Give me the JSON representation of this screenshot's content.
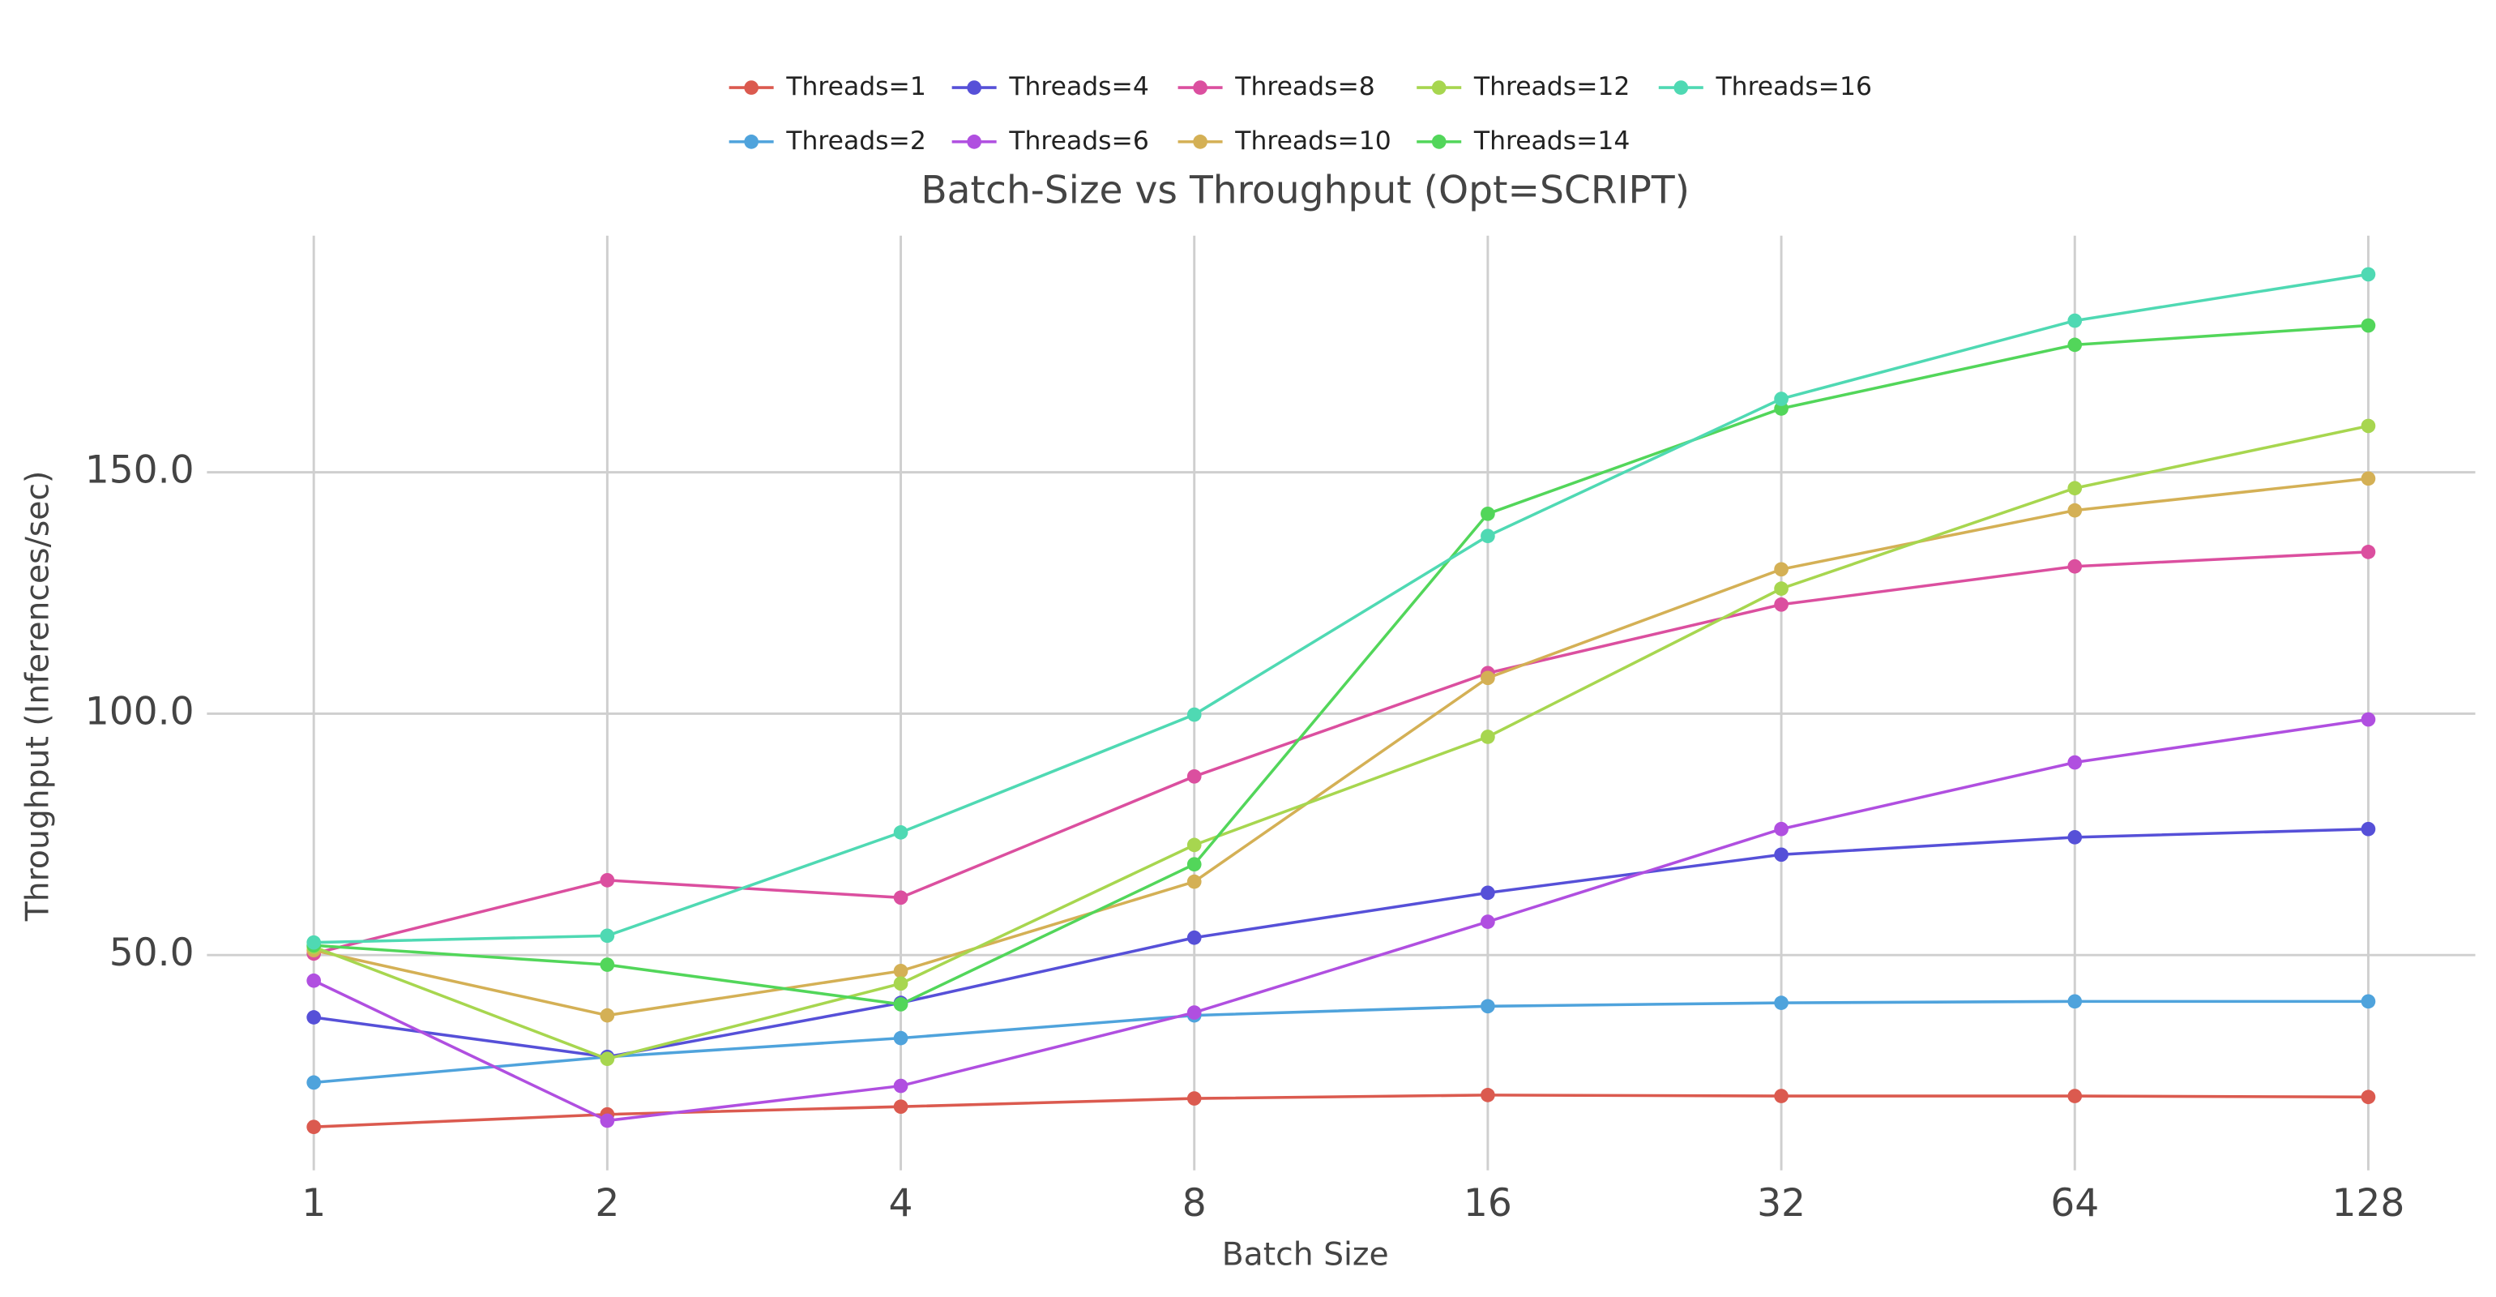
{
  "chart_data": {
    "type": "line",
    "title": "Batch-Size vs Throughput (Opt=SCRIPT)",
    "x_label": "Batch Size",
    "y_label": "Throughput (Inferences/sec)",
    "x": [
      1,
      2,
      4,
      8,
      16,
      32,
      64,
      128
    ],
    "xscale": "log2",
    "xlim": [
      0.777,
      164.8
    ],
    "xticks": [
      1,
      2,
      4,
      8,
      16,
      32,
      64,
      128
    ],
    "ylim": [
      5.4,
      199
    ],
    "yticks": [
      {
        "value": 50,
        "label": "50.0"
      },
      {
        "value": 100,
        "label": "100.0"
      },
      {
        "value": 150,
        "label": "150.0"
      }
    ],
    "grid": true,
    "legend": "top",
    "legend_columns": 5,
    "series": [
      {
        "name": "Threads=1",
        "color": "#db5a4f",
        "values": [
          14.4,
          17.0,
          18.6,
          20.3,
          21.0,
          20.8,
          20.8,
          20.6
        ]
      },
      {
        "name": "Threads=2",
        "color": "#4fa3dc",
        "values": [
          23.6,
          28.9,
          32.8,
          37.5,
          39.4,
          40.1,
          40.4,
          40.4
        ]
      },
      {
        "name": "Threads=4",
        "color": "#5650d8",
        "values": [
          37.1,
          28.9,
          40.1,
          53.6,
          62.9,
          70.8,
          74.4,
          76.1
        ]
      },
      {
        "name": "Threads=6",
        "color": "#b04fe0",
        "values": [
          44.7,
          15.7,
          22.9,
          38.1,
          56.9,
          76.1,
          89.9,
          98.8
        ]
      },
      {
        "name": "Threads=8",
        "color": "#db4f9f",
        "values": [
          50.3,
          65.5,
          61.9,
          87.0,
          108.4,
          122.6,
          130.5,
          133.5
        ]
      },
      {
        "name": "Threads=10",
        "color": "#d4b055",
        "values": [
          51.0,
          37.5,
          46.7,
          65.2,
          107.4,
          129.9,
          142.1,
          148.7
        ]
      },
      {
        "name": "Threads=12",
        "color": "#a7d64f",
        "values": [
          51.7,
          28.5,
          44.1,
          72.8,
          95.2,
          125.9,
          146.7,
          159.6
        ]
      },
      {
        "name": "Threads=14",
        "color": "#52d65a",
        "values": [
          52.0,
          48.0,
          39.8,
          68.8,
          141.4,
          163.2,
          176.4,
          180.4
        ]
      },
      {
        "name": "Threads=16",
        "color": "#4fd9b3",
        "values": [
          52.6,
          54.0,
          75.4,
          99.8,
          136.8,
          165.2,
          181.4,
          191.0
        ]
      }
    ]
  }
}
